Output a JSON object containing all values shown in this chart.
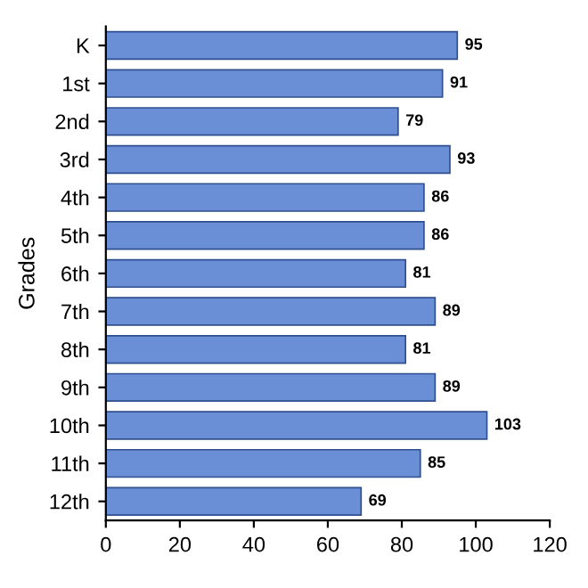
{
  "chart_data": {
    "type": "bar",
    "orientation": "horizontal",
    "ylabel": "Grades",
    "categories": [
      "K",
      "1st",
      "2nd",
      "3rd",
      "4th",
      "5th",
      "6th",
      "7th",
      "8th",
      "9th",
      "10th",
      "11th",
      "12th"
    ],
    "values": [
      95,
      91,
      79,
      93,
      86,
      86,
      81,
      89,
      81,
      89,
      103,
      85,
      69
    ],
    "color": "#6a8fd6",
    "xlim": [
      0,
      120
    ],
    "xticks": [
      0,
      20,
      40,
      60,
      80,
      100,
      120
    ],
    "data_labels": true,
    "grid": false,
    "legend": false
  }
}
